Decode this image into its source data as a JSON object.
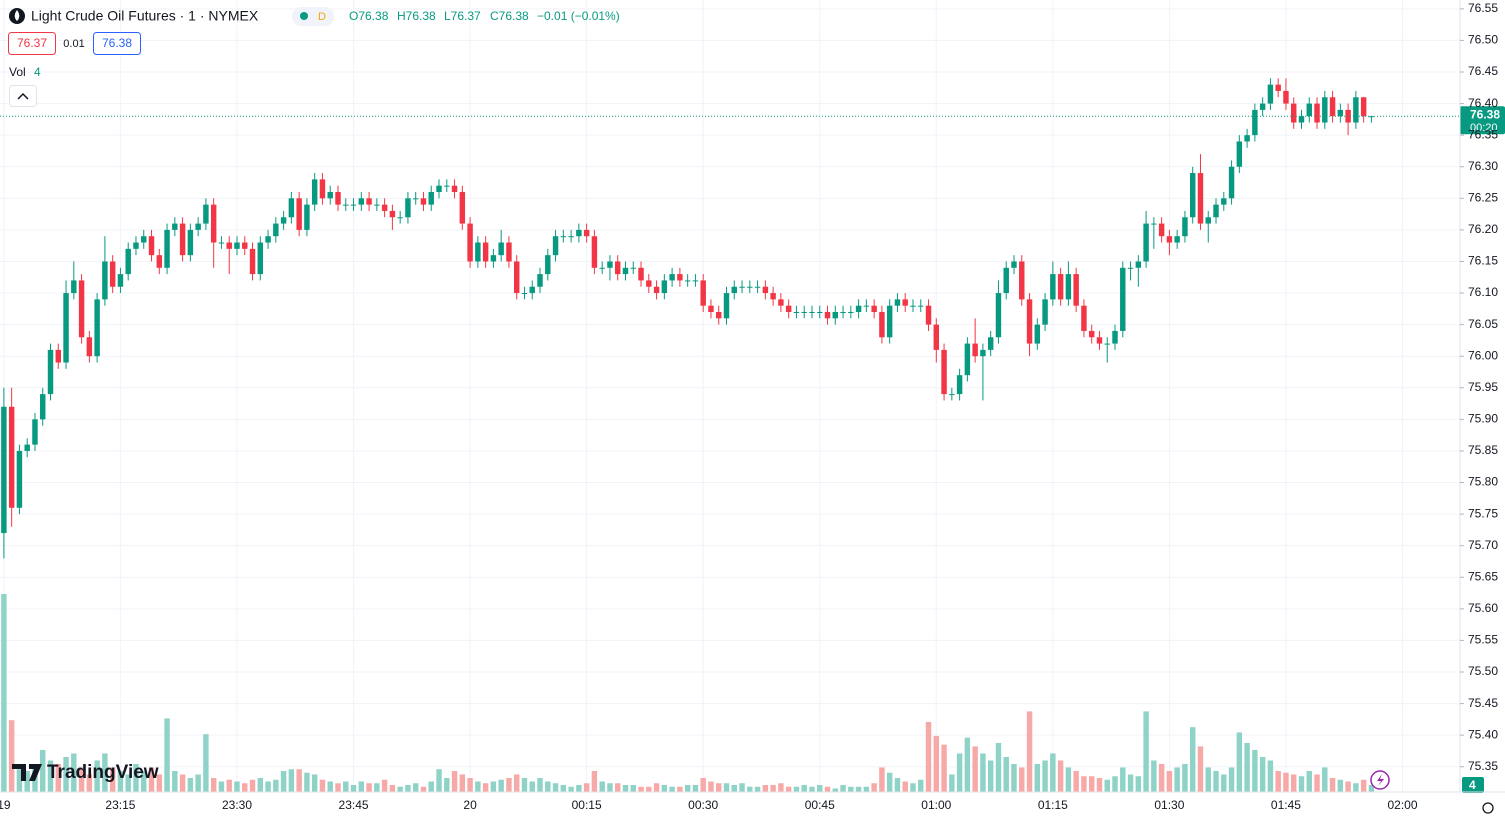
{
  "header": {
    "title": "Light Crude Oil Futures · 1 · NYMEX",
    "interval_badge": "D",
    "ohlc": [
      "O76.38",
      "H76.38",
      "L76.37",
      "C76.38",
      "−0.01 (−0.01%)"
    ],
    "bid": "76.37",
    "spread": "0.01",
    "ask": "76.38",
    "volume_label": "Vol",
    "volume_value": "4",
    "countdown": "00:20",
    "logo": "TradingView"
  },
  "chart_data": {
    "type": "candlestick",
    "up_color": "#089981",
    "down_color": "#f23645",
    "volume_up_color": "#8fd3c8",
    "volume_down_color": "#f7a9a7",
    "grid": true,
    "ylim": [
      75.31,
      76.564
    ],
    "yticks": [
      76.55,
      {
        "value": 76.5,
        "label": "76.50"
      },
      76.45,
      {
        "value": 76.4,
        "label": "76.40"
      },
      76.35,
      {
        "value": 76.3,
        "label": "76.30"
      },
      76.25,
      {
        "value": 76.2,
        "label": "76.20"
      },
      76.15,
      {
        "value": 76.1,
        "label": "76.10"
      },
      76.05,
      {
        "value": 76,
        "label": "76.00"
      },
      75.95,
      {
        "value": 75.9,
        "label": "75.90"
      },
      75.85,
      {
        "value": 75.8,
        "label": "75.80"
      },
      75.75,
      {
        "value": 75.7,
        "label": "75.70"
      },
      75.65,
      {
        "value": 75.6,
        "label": "75.60"
      },
      75.55,
      {
        "value": 75.5,
        "label": "75.50"
      },
      75.45,
      {
        "value": 75.4,
        "label": "75.40"
      },
      75.35
    ],
    "xlim": [
      -0.5,
      187.4
    ],
    "xticks": [
      {
        "value": 0,
        "label": "19"
      },
      {
        "value": 15,
        "label": "23:15"
      },
      {
        "value": 30,
        "label": "23:30"
      },
      {
        "value": 45,
        "label": "23:45"
      },
      {
        "value": 60,
        "label": "20"
      },
      {
        "value": 75,
        "label": "00:15"
      },
      {
        "value": 90,
        "label": "00:30"
      },
      {
        "value": 105,
        "label": "00:45"
      },
      {
        "value": 120,
        "label": "01:00"
      },
      {
        "value": 135,
        "label": "01:15"
      },
      {
        "value": 150,
        "label": "01:30"
      },
      {
        "value": 165,
        "label": "01:45"
      },
      {
        "value": 180,
        "label": "02:00"
      }
    ],
    "vol_ylim": [
      0,
      452
    ],
    "candles": {
      "open": [
        75.72,
        75.92,
        75.76,
        75.85,
        75.86,
        75.9,
        75.94,
        76.01,
        75.99,
        76.1,
        76.12,
        76.03,
        76.0,
        76.09,
        76.15,
        76.11,
        76.13,
        76.17,
        76.18,
        76.19,
        76.16,
        76.14,
        76.2,
        76.21,
        76.16,
        76.2,
        76.21,
        76.24,
        76.18,
        76.18,
        76.17,
        76.18,
        76.17,
        76.13,
        76.18,
        76.19,
        76.21,
        76.22,
        76.25,
        76.2,
        76.24,
        76.28,
        76.25,
        76.26,
        76.24,
        76.24,
        76.24,
        76.25,
        76.24,
        76.24,
        76.23,
        76.22,
        76.22,
        76.25,
        76.25,
        76.24,
        76.26,
        76.27,
        76.27,
        76.26,
        76.21,
        76.15,
        76.18,
        76.15,
        76.16,
        76.18,
        76.15,
        76.1,
        76.1,
        76.11,
        76.13,
        76.16,
        76.19,
        76.19,
        76.19,
        76.2,
        76.19,
        76.14,
        76.14,
        76.15,
        76.13,
        76.14,
        76.14,
        76.12,
        76.11,
        76.1,
        76.12,
        76.13,
        76.12,
        76.12,
        76.12,
        76.08,
        76.07,
        76.06,
        76.1,
        76.11,
        76.11,
        76.11,
        76.11,
        76.1,
        76.09,
        76.08,
        76.07,
        76.07,
        76.07,
        76.07,
        76.07,
        76.06,
        76.07,
        76.07,
        76.07,
        76.08,
        76.08,
        76.07,
        76.03,
        76.08,
        76.09,
        76.08,
        76.08,
        76.08,
        76.05,
        76.01,
        75.94,
        75.94,
        75.97,
        76.02,
        76.0,
        76.01,
        76.03,
        76.1,
        76.14,
        76.15,
        76.09,
        76.02,
        76.05,
        76.09,
        76.13,
        76.09,
        76.13,
        76.08,
        76.04,
        76.03,
        76.02,
        76.02,
        76.04,
        76.14,
        76.14,
        76.15,
        76.21,
        76.21,
        76.19,
        76.18,
        76.19,
        76.22,
        76.29,
        76.21,
        76.22,
        76.24,
        76.25,
        76.3,
        76.34,
        76.35,
        76.39,
        76.4,
        76.43,
        76.42,
        76.4,
        76.37,
        76.38,
        76.4,
        76.37,
        76.41,
        76.38,
        76.39,
        76.37,
        76.41,
        76.38
      ],
      "high": [
        75.95,
        75.95,
        75.86,
        75.87,
        75.91,
        75.95,
        76.02,
        76.02,
        76.12,
        76.15,
        76.13,
        76.04,
        76.1,
        76.19,
        76.16,
        76.14,
        76.18,
        76.19,
        76.2,
        76.2,
        76.17,
        76.21,
        76.22,
        76.22,
        76.21,
        76.22,
        76.25,
        76.25,
        76.19,
        76.19,
        76.19,
        76.19,
        76.18,
        76.19,
        76.2,
        76.22,
        76.23,
        76.26,
        76.26,
        76.25,
        76.29,
        76.29,
        76.27,
        76.27,
        76.25,
        76.25,
        76.26,
        76.26,
        76.25,
        76.25,
        76.24,
        76.23,
        76.26,
        76.26,
        76.26,
        76.27,
        76.28,
        76.28,
        76.28,
        76.27,
        76.22,
        76.19,
        76.19,
        76.17,
        76.2,
        76.19,
        76.16,
        76.11,
        76.12,
        76.14,
        76.17,
        76.2,
        76.2,
        76.2,
        76.21,
        76.21,
        76.2,
        76.15,
        76.16,
        76.16,
        76.15,
        76.15,
        76.15,
        76.13,
        76.12,
        76.13,
        76.14,
        76.14,
        76.13,
        76.13,
        76.13,
        76.09,
        76.08,
        76.11,
        76.12,
        76.12,
        76.12,
        76.12,
        76.12,
        76.11,
        76.1,
        76.09,
        76.08,
        76.08,
        76.08,
        76.08,
        76.08,
        76.08,
        76.08,
        76.08,
        76.09,
        76.09,
        76.09,
        76.08,
        76.09,
        76.1,
        76.1,
        76.09,
        76.09,
        76.09,
        76.06,
        76.02,
        75.95,
        75.98,
        76.03,
        76.06,
        76.02,
        76.04,
        76.12,
        76.15,
        76.16,
        76.16,
        76.1,
        76.06,
        76.1,
        76.15,
        76.14,
        76.15,
        76.14,
        76.09,
        76.05,
        76.04,
        76.03,
        76.05,
        76.15,
        76.15,
        76.16,
        76.23,
        76.22,
        76.22,
        76.2,
        76.2,
        76.23,
        76.3,
        76.32,
        76.23,
        76.25,
        76.26,
        76.31,
        76.35,
        76.36,
        76.4,
        76.41,
        76.44,
        76.44,
        76.44,
        76.41,
        76.39,
        76.41,
        76.41,
        76.42,
        76.42,
        76.4,
        76.4,
        76.42,
        76.41,
        76.38
      ],
      "low": [
        75.68,
        75.73,
        75.75,
        75.84,
        75.85,
        75.89,
        75.93,
        75.98,
        75.98,
        76.09,
        76.02,
        75.99,
        75.99,
        76.08,
        76.1,
        76.1,
        76.12,
        76.16,
        76.17,
        76.15,
        76.13,
        76.13,
        76.19,
        76.15,
        76.15,
        76.19,
        76.2,
        76.14,
        76.17,
        76.13,
        76.16,
        76.16,
        76.12,
        76.12,
        76.17,
        76.18,
        76.2,
        76.21,
        76.19,
        76.19,
        76.23,
        76.24,
        76.24,
        76.23,
        76.23,
        76.23,
        76.23,
        76.23,
        76.23,
        76.22,
        76.2,
        76.21,
        76.21,
        76.24,
        76.23,
        76.23,
        76.25,
        76.26,
        76.25,
        76.2,
        76.14,
        76.14,
        76.14,
        76.14,
        76.15,
        76.14,
        76.09,
        76.09,
        76.09,
        76.1,
        76.12,
        76.15,
        76.18,
        76.18,
        76.18,
        76.18,
        76.13,
        76.13,
        76.12,
        76.12,
        76.12,
        76.13,
        76.11,
        76.1,
        76.09,
        76.09,
        76.11,
        76.11,
        76.11,
        76.11,
        76.07,
        76.06,
        76.05,
        76.05,
        76.09,
        76.1,
        76.1,
        76.1,
        76.09,
        76.08,
        76.07,
        76.06,
        76.06,
        76.06,
        76.06,
        76.06,
        76.05,
        76.05,
        76.06,
        76.06,
        76.06,
        76.07,
        76.06,
        76.02,
        76.02,
        76.07,
        76.07,
        76.07,
        76.07,
        76.04,
        75.99,
        75.93,
        75.93,
        75.93,
        75.96,
        75.99,
        75.93,
        76.0,
        76.02,
        76.09,
        76.13,
        76.08,
        76.0,
        76.01,
        76.04,
        76.08,
        76.08,
        76.08,
        76.07,
        76.03,
        76.02,
        76.01,
        75.99,
        76.01,
        76.03,
        76.12,
        76.11,
        76.14,
        76.17,
        76.18,
        76.16,
        76.17,
        76.18,
        76.21,
        76.2,
        76.18,
        76.21,
        76.23,
        76.24,
        76.29,
        76.33,
        76.34,
        76.38,
        76.39,
        76.41,
        76.39,
        76.36,
        76.36,
        76.37,
        76.36,
        76.36,
        76.37,
        76.37,
        76.35,
        76.36,
        76.37,
        76.37
      ],
      "close": [
        75.92,
        75.76,
        75.85,
        75.86,
        75.9,
        75.94,
        76.01,
        75.99,
        76.1,
        76.12,
        76.03,
        76.0,
        76.09,
        76.15,
        76.11,
        76.13,
        76.17,
        76.18,
        76.19,
        76.16,
        76.14,
        76.2,
        76.21,
        76.16,
        76.2,
        76.21,
        76.24,
        76.18,
        76.18,
        76.17,
        76.18,
        76.17,
        76.13,
        76.18,
        76.19,
        76.21,
        76.22,
        76.25,
        76.2,
        76.24,
        76.28,
        76.25,
        76.26,
        76.24,
        76.24,
        76.24,
        76.25,
        76.24,
        76.24,
        76.23,
        76.22,
        76.22,
        76.25,
        76.25,
        76.24,
        76.26,
        76.27,
        76.27,
        76.26,
        76.21,
        76.15,
        76.18,
        76.15,
        76.16,
        76.18,
        76.15,
        76.1,
        76.1,
        76.11,
        76.13,
        76.16,
        76.19,
        76.19,
        76.19,
        76.2,
        76.19,
        76.14,
        76.14,
        76.15,
        76.13,
        76.14,
        76.14,
        76.12,
        76.11,
        76.1,
        76.12,
        76.13,
        76.12,
        76.12,
        76.12,
        76.08,
        76.07,
        76.06,
        76.1,
        76.11,
        76.11,
        76.11,
        76.11,
        76.1,
        76.09,
        76.08,
        76.07,
        76.07,
        76.07,
        76.07,
        76.07,
        76.06,
        76.07,
        76.07,
        76.07,
        76.08,
        76.08,
        76.07,
        76.03,
        76.08,
        76.09,
        76.08,
        76.08,
        76.08,
        76.05,
        76.01,
        75.94,
        75.94,
        75.97,
        76.02,
        76.0,
        76.01,
        76.03,
        76.1,
        76.14,
        76.15,
        76.09,
        76.02,
        76.05,
        76.09,
        76.13,
        76.09,
        76.13,
        76.08,
        76.04,
        76.03,
        76.02,
        76.02,
        76.04,
        76.14,
        76.14,
        76.15,
        76.21,
        76.21,
        76.19,
        76.18,
        76.19,
        76.22,
        76.29,
        76.21,
        76.22,
        76.24,
        76.25,
        76.3,
        76.34,
        76.35,
        76.39,
        76.4,
        76.43,
        76.42,
        76.4,
        76.37,
        76.38,
        76.4,
        76.37,
        76.41,
        76.38,
        76.39,
        76.37,
        76.41,
        76.38,
        76.38
      ],
      "volume": [
        113,
        41,
        13,
        12,
        14,
        24,
        18,
        16,
        20,
        22,
        14,
        10,
        18,
        22,
        14,
        12,
        10,
        16,
        12,
        14,
        10,
        42,
        12,
        10,
        8,
        10,
        33,
        8,
        6,
        7,
        6,
        5,
        7,
        8,
        6,
        7,
        12,
        13,
        13,
        11,
        10,
        7,
        6,
        5,
        6,
        4,
        6,
        5,
        5,
        7,
        4,
        3,
        4,
        5,
        3,
        6,
        13,
        8,
        12,
        10,
        8,
        6,
        5,
        6,
        7,
        8,
        10,
        8,
        6,
        8,
        6,
        5,
        4,
        3,
        4,
        5,
        12,
        6,
        5,
        5,
        4,
        4,
        3,
        3,
        5,
        4,
        3,
        3,
        4,
        4,
        8,
        6,
        5,
        5,
        4,
        5,
        3,
        3,
        4,
        4,
        5,
        3,
        3,
        4,
        3,
        4,
        3,
        2,
        4,
        3,
        3,
        3,
        5,
        14,
        11,
        8,
        6,
        5,
        7,
        40,
        32,
        27,
        10,
        22,
        31,
        26,
        22,
        18,
        28,
        20,
        16,
        14,
        46,
        16,
        18,
        22,
        18,
        14,
        12,
        9,
        9,
        8,
        7,
        9,
        14,
        10,
        9,
        46,
        18,
        16,
        12,
        14,
        16,
        37,
        26,
        14,
        12,
        10,
        14,
        34,
        28,
        24,
        20,
        18,
        12,
        11,
        10,
        9,
        12,
        10,
        14,
        8,
        7,
        6,
        5,
        7,
        4
      ]
    }
  }
}
